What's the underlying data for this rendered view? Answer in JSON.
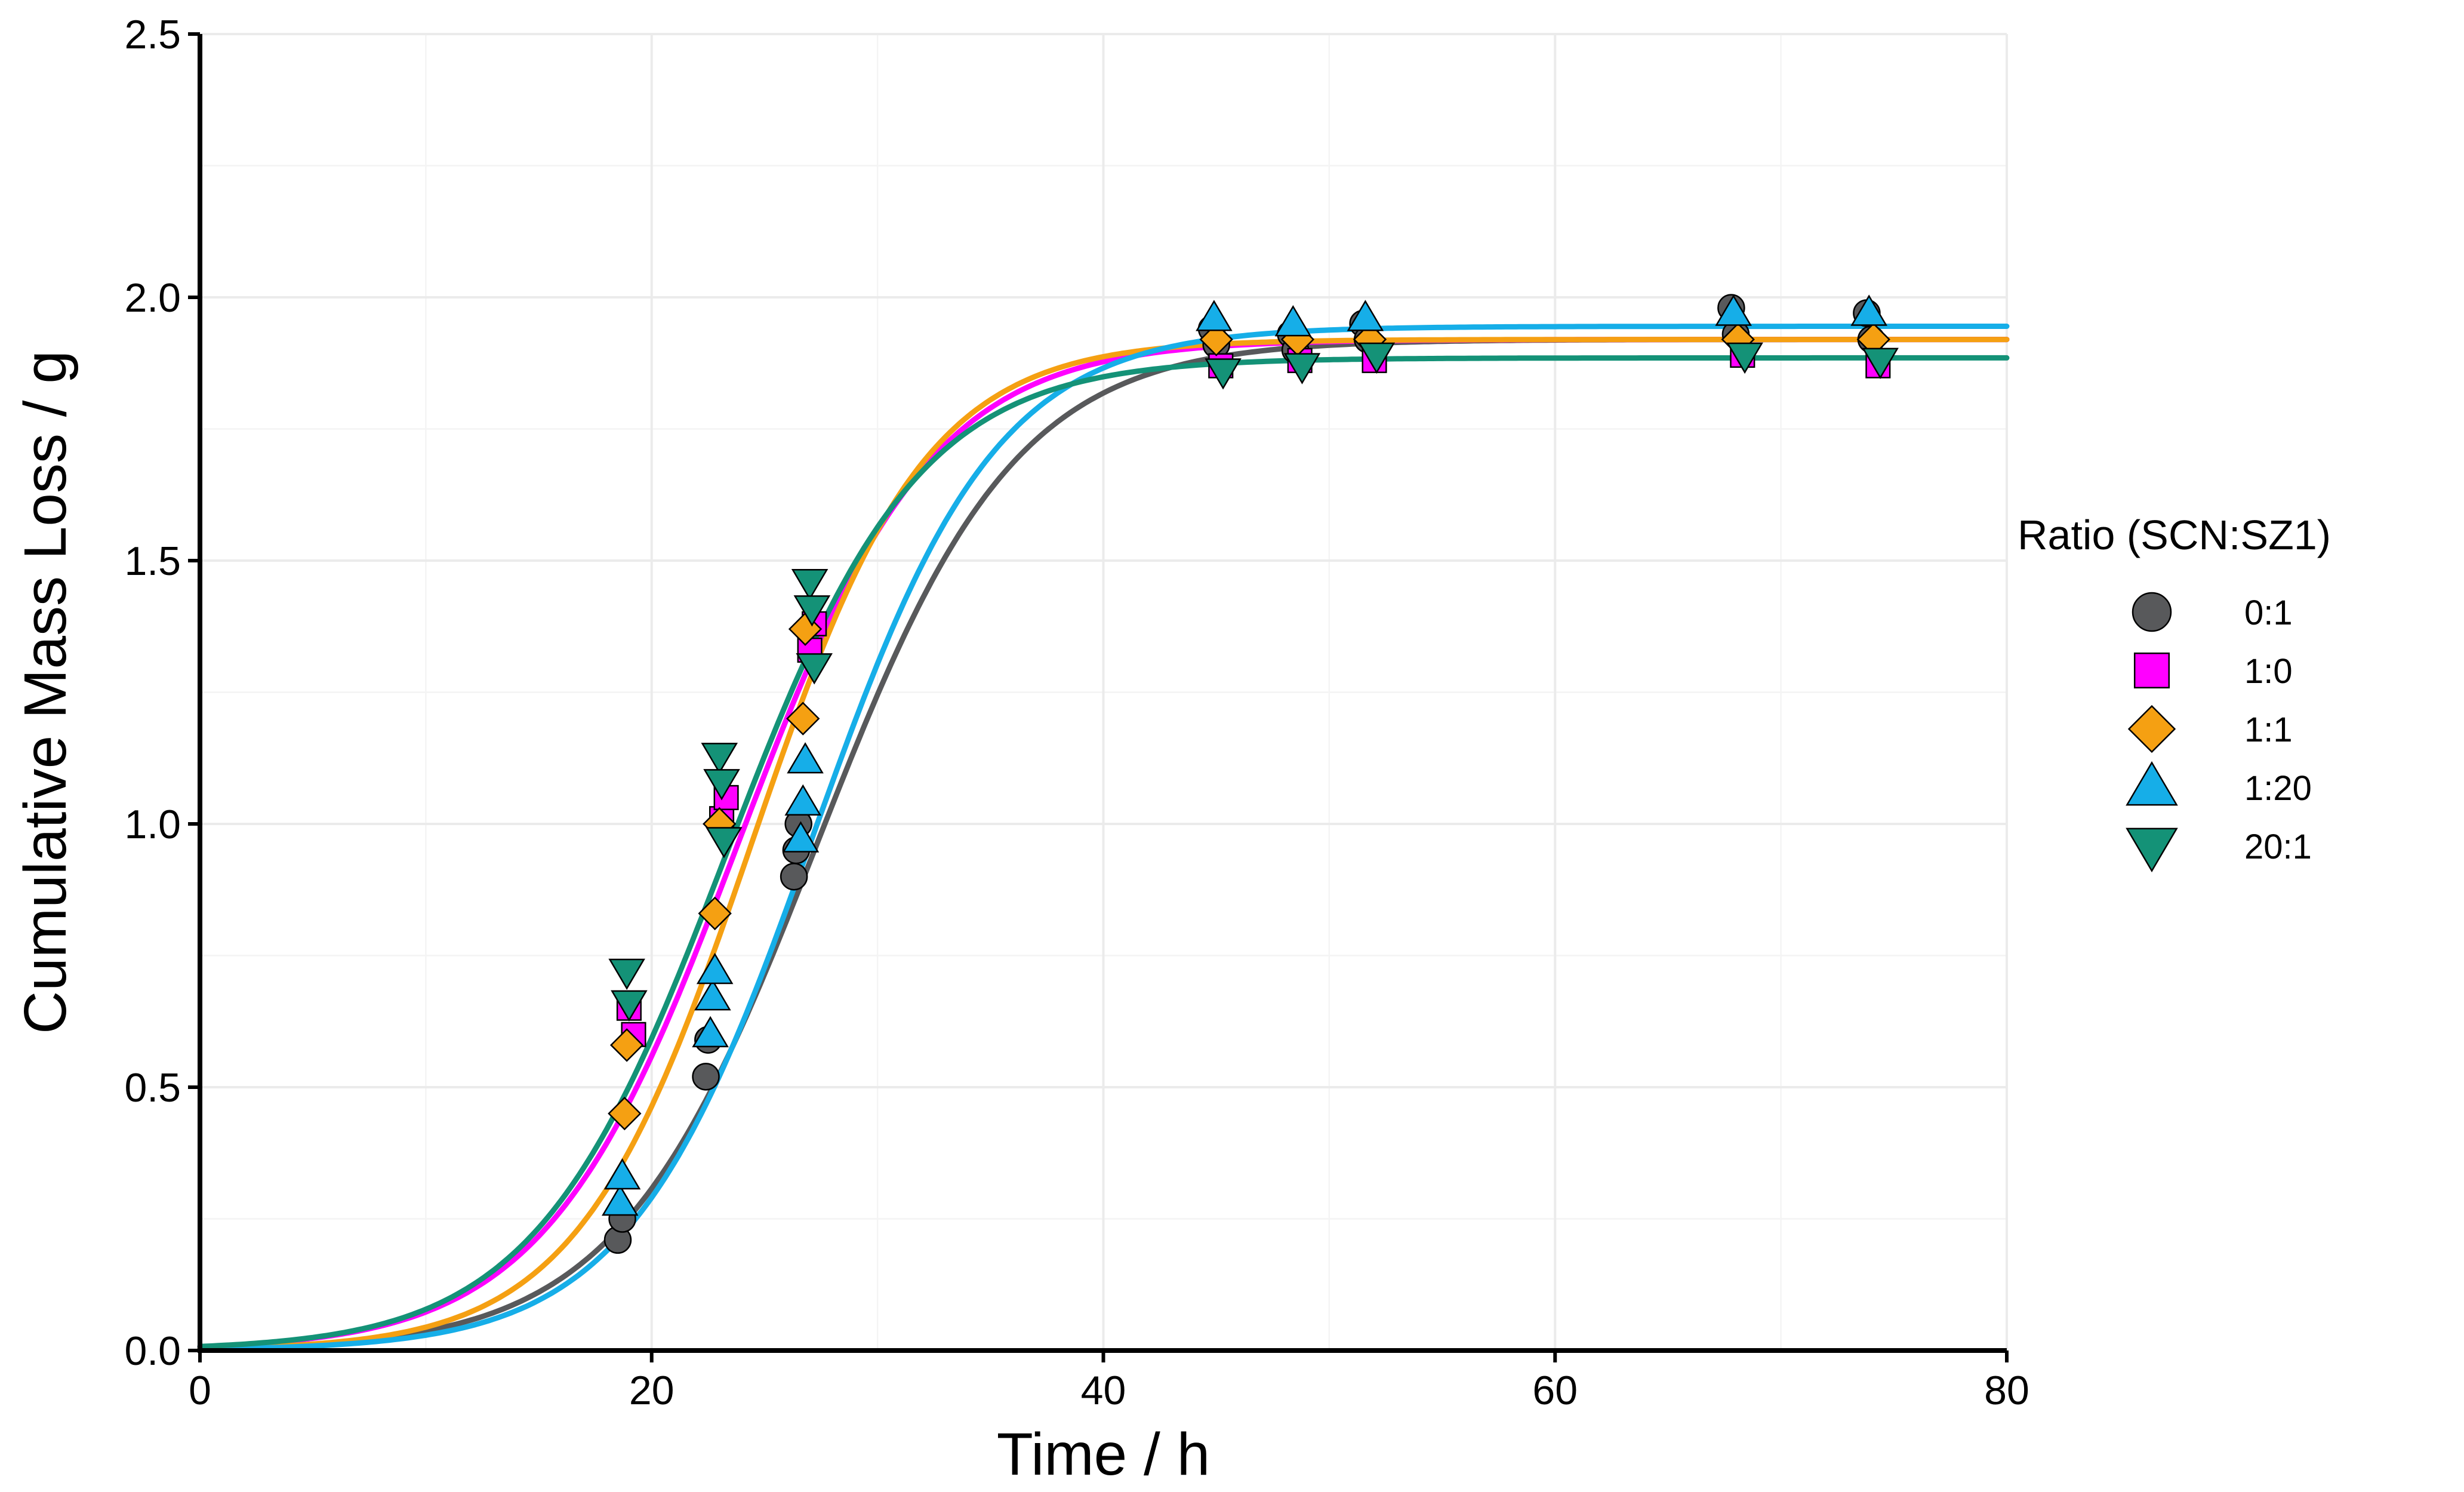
{
  "chart_data": {
    "type": "scatter",
    "title": "",
    "xlabel": "Time / h",
    "ylabel": "Cumulative Mass Loss / g",
    "xlim": [
      0,
      80
    ],
    "ylim": [
      0,
      2.5
    ],
    "xticks": [
      0,
      20,
      40,
      60,
      80
    ],
    "xtick_labels": [
      "0",
      "20",
      "40",
      "60",
      "80"
    ],
    "yticks": [
      0,
      0.5,
      1.0,
      1.5,
      2.0,
      2.5
    ],
    "ytick_labels": [
      "0.0",
      "0.5",
      "1.0",
      "1.5",
      "2.0",
      "2.5"
    ],
    "grid": true,
    "legend": {
      "title": "Ratio (SCN:SZ1)",
      "position": "right"
    },
    "series": [
      {
        "name": "0:1",
        "color": "#58595b",
        "marker": "circle",
        "fit": {
          "model": "logistic",
          "asymptote": 1.92,
          "midpoint": 27.3,
          "rate": 0.227
        },
        "points": [
          [
            18.5,
            0.21
          ],
          [
            18.7,
            0.25
          ],
          [
            22.4,
            0.52
          ],
          [
            22.5,
            0.59
          ],
          [
            26.3,
            0.9
          ],
          [
            26.4,
            0.95
          ],
          [
            26.5,
            1.0
          ],
          [
            44.8,
            1.94
          ],
          [
            45.0,
            1.91
          ],
          [
            48.3,
            1.93
          ],
          [
            48.5,
            1.9
          ],
          [
            51.5,
            1.95
          ],
          [
            51.7,
            1.92
          ],
          [
            67.8,
            1.98
          ],
          [
            68.0,
            1.93
          ],
          [
            73.8,
            1.97
          ],
          [
            74.0,
            1.92
          ]
        ]
      },
      {
        "name": "1:0",
        "color": "#ff00ff",
        "marker": "square",
        "fit": {
          "model": "logistic",
          "asymptote": 1.92,
          "midpoint": 23.8,
          "rate": 0.234
        },
        "points": [
          [
            19.0,
            0.65
          ],
          [
            19.2,
            0.6
          ],
          [
            23.1,
            1.01
          ],
          [
            23.3,
            1.05
          ],
          [
            27.0,
            1.33
          ],
          [
            27.2,
            1.38
          ],
          [
            45.2,
            1.87
          ],
          [
            48.7,
            1.88
          ],
          [
            52.0,
            1.88
          ],
          [
            68.3,
            1.89
          ],
          [
            74.3,
            1.87
          ]
        ]
      },
      {
        "name": "1:1",
        "color": "#f5a012",
        "marker": "diamond",
        "fit": {
          "model": "logistic",
          "asymptote": 1.92,
          "midpoint": 24.4,
          "rate": 0.26
        },
        "points": [
          [
            18.8,
            0.45
          ],
          [
            18.9,
            0.58
          ],
          [
            22.8,
            0.83
          ],
          [
            23.0,
            1.0
          ],
          [
            26.7,
            1.2
          ],
          [
            26.8,
            1.37
          ],
          [
            45.0,
            1.92
          ],
          [
            48.6,
            1.92
          ],
          [
            51.8,
            1.92
          ],
          [
            68.1,
            1.92
          ],
          [
            74.1,
            1.92
          ]
        ]
      },
      {
        "name": "1:20",
        "color": "#16aee8",
        "marker": "triangle-up",
        "fit": {
          "model": "logistic",
          "asymptote": 1.945,
          "midpoint": 27.1,
          "rate": 0.245
        },
        "points": [
          [
            18.6,
            0.28
          ],
          [
            18.7,
            0.33
          ],
          [
            22.6,
            0.6
          ],
          [
            22.7,
            0.67
          ],
          [
            22.8,
            0.72
          ],
          [
            26.6,
            0.97
          ],
          [
            26.7,
            1.04
          ],
          [
            26.8,
            1.12
          ],
          [
            44.9,
            1.96
          ],
          [
            48.4,
            1.95
          ],
          [
            51.6,
            1.96
          ],
          [
            67.9,
            1.97
          ],
          [
            73.9,
            1.97
          ]
        ]
      },
      {
        "name": "20:1",
        "color": "#149277",
        "marker": "triangle-down",
        "fit": {
          "model": "logistic",
          "asymptote": 1.885,
          "midpoint": 23.3,
          "rate": 0.236
        },
        "points": [
          [
            18.9,
            0.72
          ],
          [
            19.0,
            0.66
          ],
          [
            23.0,
            1.13
          ],
          [
            23.1,
            1.08
          ],
          [
            23.2,
            0.97
          ],
          [
            27.0,
            1.46
          ],
          [
            27.1,
            1.41
          ],
          [
            27.2,
            1.3
          ],
          [
            45.3,
            1.86
          ],
          [
            48.8,
            1.87
          ],
          [
            52.1,
            1.89
          ],
          [
            68.4,
            1.89
          ],
          [
            74.4,
            1.88
          ]
        ]
      }
    ]
  }
}
